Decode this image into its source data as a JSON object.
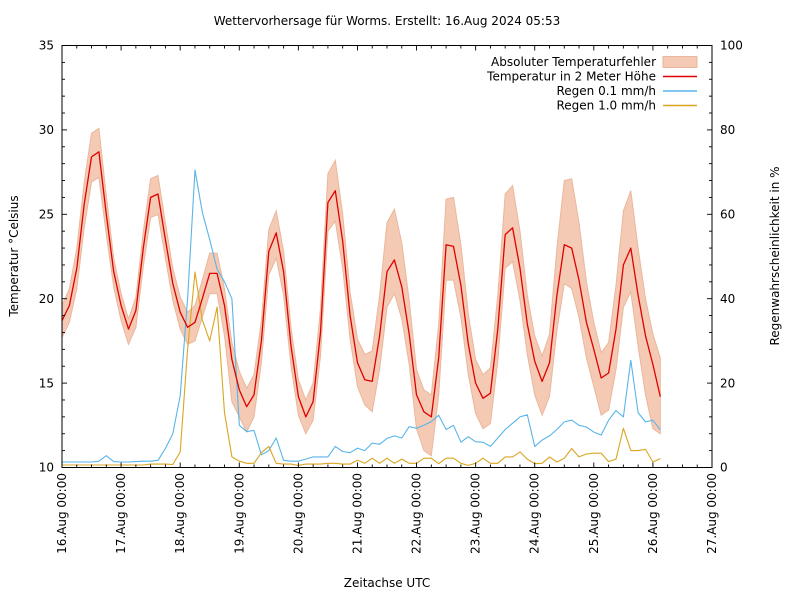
{
  "title": "Wettervorhersage für Worms. Erstellt: 16.Aug 2024 05:53",
  "axes": {
    "x": {
      "label": "Zeitachse UTC",
      "tick_labels": [
        "16.Aug 00:00",
        "17.Aug 00:00",
        "18.Aug 00:00",
        "19.Aug 00:00",
        "20.Aug 00:00",
        "21.Aug 00:00",
        "22.Aug 00:00",
        "23.Aug 00:00",
        "24.Aug 00:00",
        "25.Aug 00:00",
        "26.Aug 00:00",
        "27.Aug 00:00"
      ],
      "range_hours": 264
    },
    "y_left": {
      "label": "Temperatur °Celsius",
      "ticks": [
        10,
        15,
        20,
        25,
        30,
        35
      ],
      "min": 10,
      "max": 35
    },
    "y_right": {
      "label": "Regenwahrscheinlichkeit in %",
      "ticks": [
        0,
        20,
        40,
        60,
        80,
        100
      ],
      "min": 0,
      "max": 100
    }
  },
  "legend": {
    "items": [
      {
        "label": "Absoluter Temperaturfehler",
        "marker": "band",
        "color_key": "band"
      },
      {
        "label": "Temperatur in 2 Meter Höhe",
        "marker": "line",
        "color_key": "temp"
      },
      {
        "label": "Regen 0.1 mm/h",
        "marker": "line",
        "color_key": "rain01"
      },
      {
        "label": "Regen 1.0 mm/h",
        "marker": "line",
        "color_key": "rain10"
      }
    ]
  },
  "chart_data": {
    "type": "line",
    "title": "Wettervorhersage für Worms. Erstellt: 16.Aug 2024 05:53",
    "xlabel": "Zeitachse UTC",
    "ylabel_left": "Temperatur °Celsius",
    "ylabel_right": "Regenwahrscheinlichkeit in %",
    "x_range_hours": [
      0,
      264
    ],
    "x_day_tick_hours": [
      0,
      24,
      48,
      72,
      96,
      120,
      144,
      168,
      192,
      216,
      240,
      264
    ],
    "ylim_left": [
      10,
      35
    ],
    "ylim_right": [
      0,
      100
    ],
    "grid": false,
    "legend_position": "upper right, no frame, markers right of labels",
    "colors": {
      "temp": "#e00000",
      "rain01": "#58b5e8",
      "rain10": "#daa520",
      "band": "#f4cab4",
      "band_edge": "#eab79c"
    },
    "sampling": {
      "start_hour": 0,
      "step_hours": 3,
      "end_hour": 243,
      "t0": "16.Aug 2024 00:00 UTC"
    },
    "series": [
      {
        "name": "Temperatur in 2 Meter Höhe",
        "unit": "°C",
        "axis": "left",
        "values": [
          18.7,
          19.6,
          21.8,
          25.6,
          28.4,
          28.7,
          25.0,
          21.6,
          19.6,
          18.2,
          19.3,
          23.0,
          26.0,
          26.2,
          23.5,
          20.9,
          19.2,
          18.3,
          18.6,
          20.0,
          21.5,
          21.5,
          19.6,
          16.4,
          14.6,
          13.6,
          14.3,
          17.5,
          22.8,
          23.9,
          21.6,
          17.2,
          14.2,
          13.0,
          13.9,
          18.0,
          25.7,
          26.4,
          23.4,
          19.0,
          16.2,
          15.2,
          15.1,
          17.8,
          21.6,
          22.3,
          20.7,
          17.9,
          14.3,
          13.3,
          13.0,
          16.5,
          23.2,
          23.1,
          20.8,
          17.3,
          15.0,
          14.1,
          14.4,
          18.2,
          23.8,
          24.2,
          21.8,
          18.5,
          16.3,
          15.1,
          16.2,
          20.2,
          23.2,
          23.0,
          21.1,
          18.6,
          17.0,
          15.3,
          15.6,
          18.2,
          22.0,
          23.0,
          20.2,
          17.8,
          16.1,
          14.2
        ]
      },
      {
        "name": "Absoluter Temperaturfehler (oben)",
        "unit": "°C",
        "axis": "left",
        "values": [
          0.9,
          1.0,
          1.2,
          1.3,
          1.4,
          1.4,
          1.1,
          0.8,
          0.7,
          0.6,
          0.8,
          1.0,
          1.1,
          1.1,
          1.0,
          0.9,
          0.9,
          0.9,
          1.0,
          1.1,
          1.2,
          1.2,
          1.0,
          1.0,
          1.1,
          1.1,
          1.2,
          1.2,
          1.3,
          1.3,
          1.2,
          1.1,
          1.0,
          1.0,
          1.1,
          1.4,
          1.7,
          1.8,
          1.6,
          1.4,
          1.4,
          1.5,
          1.8,
          2.4,
          2.9,
          3.0,
          2.6,
          2.0,
          1.5,
          1.3,
          1.3,
          2.0,
          2.7,
          2.9,
          2.4,
          1.8,
          1.4,
          1.4,
          1.5,
          2.0,
          2.4,
          2.5,
          2.2,
          1.7,
          1.5,
          1.5,
          1.7,
          2.8,
          3.8,
          4.1,
          3.4,
          2.4,
          1.6,
          1.5,
          1.8,
          2.6,
          3.2,
          3.4,
          2.8,
          2.2,
          1.8,
          2.3
        ]
      },
      {
        "name": "Absoluter Temperaturfehler (unten)",
        "unit": "°C",
        "axis": "left",
        "values": [
          1.0,
          1.0,
          1.2,
          1.4,
          1.5,
          1.5,
          1.2,
          0.9,
          0.9,
          0.9,
          1.0,
          1.1,
          1.2,
          1.2,
          1.1,
          1.0,
          1.0,
          1.0,
          1.1,
          1.1,
          1.2,
          1.2,
          1.8,
          2.5,
          1.6,
          1.5,
          1.3,
          1.3,
          1.4,
          1.5,
          1.4,
          1.2,
          1.1,
          1.0,
          1.1,
          1.4,
          1.7,
          1.8,
          1.6,
          1.4,
          1.4,
          1.5,
          1.8,
          2.0,
          2.1,
          2.0,
          1.9,
          1.8,
          2.0,
          2.3,
          2.3,
          2.2,
          2.1,
          2.0,
          1.9,
          1.8,
          1.8,
          1.8,
          1.8,
          1.9,
          2.0,
          2.0,
          1.9,
          1.8,
          2.0,
          2.0,
          2.0,
          2.1,
          2.3,
          2.4,
          2.2,
          2.1,
          2.2,
          2.2,
          2.2,
          2.4,
          2.5,
          2.6,
          3.0,
          3.5,
          3.8,
          2.2
        ]
      },
      {
        "name": "Regen 0.1 mm/h",
        "unit": "%",
        "axis": "right",
        "values": [
          1.3,
          1.3,
          1.3,
          1.3,
          1.3,
          1.5,
          2.8,
          1.4,
          1.3,
          1.3,
          1.4,
          1.5,
          1.5,
          1.7,
          4.5,
          8.0,
          17.0,
          40.0,
          70.5,
          60.5,
          54.0,
          47.0,
          44.0,
          40.0,
          10.0,
          8.5,
          8.8,
          3.0,
          4.0,
          7.0,
          1.7,
          1.5,
          1.5,
          2.0,
          2.5,
          2.5,
          2.5,
          5.0,
          3.8,
          3.5,
          4.6,
          4.0,
          5.8,
          5.5,
          6.9,
          7.5,
          7.0,
          9.7,
          9.3,
          10.0,
          10.9,
          12.4,
          9.0,
          10.0,
          6.0,
          7.3,
          6.1,
          6.0,
          5.0,
          7.0,
          9.0,
          10.5,
          12.0,
          12.5,
          5.0,
          6.5,
          7.5,
          9.0,
          10.8,
          11.2,
          10.0,
          9.6,
          8.4,
          7.7,
          11.2,
          13.5,
          12.0,
          25.4,
          13.0,
          10.8,
          11.2,
          8.9
        ]
      },
      {
        "name": "Regen 1.0 mm/h",
        "unit": "%",
        "axis": "right",
        "values": [
          0.6,
          0.6,
          0.6,
          0.6,
          0.6,
          0.6,
          0.6,
          0.6,
          0.6,
          0.6,
          0.6,
          0.6,
          0.8,
          0.8,
          0.8,
          0.7,
          3.7,
          28.0,
          46.3,
          35.0,
          30.0,
          38.0,
          13.0,
          2.5,
          1.5,
          1.0,
          1.0,
          3.5,
          5.0,
          1.0,
          0.8,
          0.8,
          0.5,
          0.8,
          0.8,
          0.8,
          1.0,
          1.0,
          0.8,
          0.8,
          1.7,
          1.0,
          2.2,
          1.0,
          2.2,
          1.0,
          2.0,
          1.0,
          1.0,
          2.2,
          2.2,
          0.9,
          2.2,
          2.2,
          1.0,
          0.5,
          1.0,
          2.2,
          1.0,
          1.0,
          2.5,
          2.5,
          3.7,
          2.0,
          0.9,
          1.0,
          2.5,
          1.3,
          2.2,
          4.5,
          2.5,
          3.2,
          3.4,
          3.4,
          1.4,
          2.0,
          9.3,
          4.0,
          4.0,
          4.3,
          1.3,
          2.1
        ]
      }
    ]
  }
}
